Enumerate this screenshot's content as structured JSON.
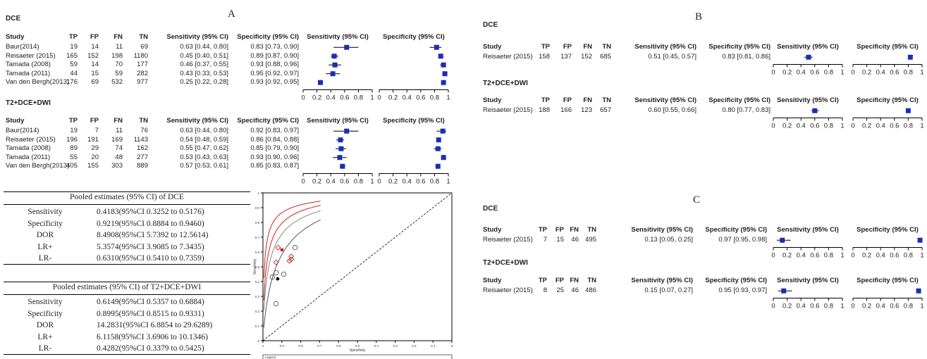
{
  "panel_labels": {
    "a": "A",
    "b": "B",
    "c": "C"
  },
  "column_headers": {
    "study": "Study",
    "tp": "TP",
    "fp": "FP",
    "fn": "FN",
    "tn": "TN",
    "sens": "Sensitivity (95% CI)",
    "spec": "Specificity (95% CI)"
  },
  "axis_ticks": [
    "0",
    "0.2",
    "0.4",
    "0.6",
    "0.8",
    "1"
  ],
  "panel_a": {
    "dce": {
      "label": "DCE",
      "rows": [
        {
          "study": "Baur(2014)",
          "tp": "19",
          "fp": "14",
          "fn": "11",
          "tn": "69",
          "sens": "0.63 [0.44, 0.80]",
          "spec": "0.83 [0.73, 0.90]",
          "sv": 0.63,
          "sl": 0.44,
          "sh": 0.8,
          "pv": 0.83,
          "pl": 0.73,
          "ph": 0.9
        },
        {
          "study": "Reisaeter (2015)",
          "tp": "165",
          "fp": "152",
          "fn": "198",
          "tn": "1180",
          "sens": "0.45 [0.40, 0.51]",
          "spec": "0.89 [0.87, 0.90]",
          "sv": 0.45,
          "sl": 0.4,
          "sh": 0.51,
          "pv": 0.89,
          "pl": 0.87,
          "ph": 0.9
        },
        {
          "study": "Tamada (2008)",
          "tp": "59",
          "fp": "14",
          "fn": "70",
          "tn": "177",
          "sens": "0.46 [0.37, 0.55]",
          "spec": "0.93 [0.88, 0.96]",
          "sv": 0.46,
          "sl": 0.37,
          "sh": 0.55,
          "pv": 0.93,
          "pl": 0.88,
          "ph": 0.96
        },
        {
          "study": "Tamada (2011)",
          "tp": "44",
          "fp": "15",
          "fn": "59",
          "tn": "282",
          "sens": "0.43 [0.33, 0.53]",
          "spec": "0.95 [0.92, 0.97]",
          "sv": 0.43,
          "sl": 0.33,
          "sh": 0.53,
          "pv": 0.95,
          "pl": 0.92,
          "ph": 0.97
        },
        {
          "study": "Van den Bergh(2013)",
          "tp": "176",
          "fp": "69",
          "fn": "532",
          "tn": "977",
          "sens": "0.25 [0.22, 0.28]",
          "spec": "0.93 [0.92, 0.95]",
          "sv": 0.25,
          "sl": 0.22,
          "sh": 0.28,
          "pv": 0.93,
          "pl": 0.92,
          "ph": 0.95
        }
      ]
    },
    "t2": {
      "label": "T2+DCE+DWI",
      "rows": [
        {
          "study": "Baur(2014)",
          "tp": "19",
          "fp": "7",
          "fn": "11",
          "tn": "76",
          "sens": "0.63 [0.44, 0.80]",
          "spec": "0.92 [0.83, 0.97]",
          "sv": 0.63,
          "sl": 0.44,
          "sh": 0.8,
          "pv": 0.92,
          "pl": 0.83,
          "ph": 0.97
        },
        {
          "study": "Reisaeter (2015)",
          "tp": "196",
          "fp": "191",
          "fn": "169",
          "tn": "1143",
          "sens": "0.54 [0.48, 0.59]",
          "spec": "0.86 [0.84, 0.88]",
          "sv": 0.54,
          "sl": 0.48,
          "sh": 0.59,
          "pv": 0.86,
          "pl": 0.84,
          "ph": 0.88
        },
        {
          "study": "Tamada (2008)",
          "tp": "89",
          "fp": "29",
          "fn": "74",
          "tn": "162",
          "sens": "0.55 [0.47, 0.62]",
          "spec": "0.85 [0.79, 0.90]",
          "sv": 0.55,
          "sl": 0.47,
          "sh": 0.62,
          "pv": 0.85,
          "pl": 0.79,
          "ph": 0.9
        },
        {
          "study": "Tamada (2011)",
          "tp": "55",
          "fp": "20",
          "fn": "48",
          "tn": "277",
          "sens": "0.53 [0.43, 0.63]",
          "spec": "0.93 [0.90, 0.96]",
          "sv": 0.53,
          "sl": 0.43,
          "sh": 0.63,
          "pv": 0.93,
          "pl": 0.9,
          "ph": 0.96
        },
        {
          "study": "Van den Bergh(2013)",
          "tp": "405",
          "fp": "155",
          "fn": "303",
          "tn": "889",
          "sens": "0.57 [0.53, 0.61]",
          "spec": "0.85 [0.83, 0.87]",
          "sv": 0.57,
          "sl": 0.53,
          "sh": 0.61,
          "pv": 0.85,
          "pl": 0.83,
          "ph": 0.87
        }
      ]
    }
  },
  "panel_b": {
    "dce": {
      "label": "DCE",
      "rows": [
        {
          "study": "Reisaeter (2015)",
          "tp": "158",
          "fp": "137",
          "fn": "152",
          "tn": "685",
          "sens": "0.51 [0.45, 0.57]",
          "spec": "0.83 [0.81, 0.86]",
          "sv": 0.51,
          "sl": 0.45,
          "sh": 0.57,
          "pv": 0.83,
          "pl": 0.81,
          "ph": 0.86
        }
      ]
    },
    "t2": {
      "label": "T2+DCE+DWI",
      "rows": [
        {
          "study": "Reisaeter (2015)",
          "tp": "188",
          "fp": "166",
          "fn": "123",
          "tn": "657",
          "sens": "0.60 [0.55, 0.66]",
          "spec": "0.80 [0.77, 0.83]",
          "sv": 0.6,
          "sl": 0.55,
          "sh": 0.66,
          "pv": 0.8,
          "pl": 0.77,
          "ph": 0.83
        }
      ]
    }
  },
  "panel_c": {
    "dce": {
      "label": "DCE",
      "rows": [
        {
          "study": "Reisaeter (2015)",
          "tp": "7",
          "fp": "15",
          "fn": "46",
          "tn": "495",
          "sens": "0.13 [0.05, 0.25]",
          "spec": "0.97 [0.95, 0.98]",
          "sv": 0.13,
          "sl": 0.05,
          "sh": 0.25,
          "pv": 0.97,
          "pl": 0.95,
          "ph": 0.98
        }
      ]
    },
    "t2": {
      "label": "T2+DCE+DWI",
      "rows": [
        {
          "study": "Reisaeter (2015)",
          "tp": "8",
          "fp": "25",
          "fn": "46",
          "tn": "486",
          "sens": "0.15 [0.07, 0.27]",
          "spec": "0.95 [0.93, 0.97]",
          "sv": 0.15,
          "sl": 0.07,
          "sh": 0.27,
          "pv": 0.95,
          "pl": 0.93,
          "ph": 0.97
        }
      ]
    }
  },
  "pooled_dce": {
    "title": "Pooled estimates (95% CI) of DCE",
    "rows": [
      {
        "label": "Sensitivity",
        "value": "0.4183(95%CI 0.3252 to 0.5176)"
      },
      {
        "label": "Specificity",
        "value": "0.9219(95%CI 0.8884 to 0.9460)"
      },
      {
        "label": "DOR",
        "value": "8.4908(95%CI 5.7392 to 12.5614)"
      },
      {
        "label": "LR+",
        "value": "5.3574(95%CI 3.9085 to 7.3435)"
      },
      {
        "label": "LR-",
        "value": "0.6310(95%CI 0.5410 to 0.7359)"
      }
    ]
  },
  "pooled_t2": {
    "title": "Pooled estimates (95% CI) of T2+DCE+DWI",
    "rows": [
      {
        "label": "Sensitivity",
        "value": "0.6149(95%CI 0.5357 to 0.6884)"
      },
      {
        "label": "Specificity",
        "value": "0.8995(95%CI 0.8515 to 0.9331)"
      },
      {
        "label": "DOR",
        "value": "14.2831(95%CI 6.8854 to 29.6289)"
      },
      {
        "label": "LR+",
        "value": "6.1158(95%CI 3.6906 to 10.1346)"
      },
      {
        "label": "LR-",
        "value": "0.4282(95%CI 0.3379 to 0.5425)"
      }
    ]
  },
  "sroc": {
    "ylabel": "Sensitivity",
    "xlabel": "Specificity",
    "yticks": [
      "0",
      "0.1",
      "0.2",
      "0.3",
      "0.4",
      "0.5",
      "0.6",
      "0.7",
      "0.8",
      "0.9",
      "1"
    ],
    "xticks": [
      "1",
      "0.9",
      "0.8",
      "0.7",
      "0.6",
      "0.5",
      "0.4",
      "0.3",
      "0.2",
      "0.1",
      "0"
    ],
    "legend_title": "Legend",
    "legend_dce": "DCE",
    "legend_t2": "T2+DCE+DWI",
    "colors": {
      "dce": "#555555",
      "t2": "#cc2222"
    }
  },
  "colors": {
    "marker": "#1a2fb5",
    "line": "#000000"
  },
  "chart_data": [
    {
      "type": "forest",
      "title": "A",
      "group": "DCE",
      "categories": [
        "Baur(2014)",
        "Reisaeter (2015)",
        "Tamada (2008)",
        "Tamada (2011)",
        "Van den Bergh(2013)"
      ],
      "series": [
        {
          "name": "Sensitivity (95% CI)",
          "values": [
            0.63,
            0.45,
            0.46,
            0.43,
            0.25
          ]
        },
        {
          "name": "Specificity (95% CI)",
          "values": [
            0.83,
            0.89,
            0.93,
            0.95,
            0.93
          ]
        }
      ],
      "xlim": [
        0,
        1
      ]
    },
    {
      "type": "forest",
      "title": "A",
      "group": "T2+DCE+DWI",
      "categories": [
        "Baur(2014)",
        "Reisaeter (2015)",
        "Tamada (2008)",
        "Tamada (2011)",
        "Van den Bergh(2013)"
      ],
      "series": [
        {
          "name": "Sensitivity (95% CI)",
          "values": [
            0.63,
            0.54,
            0.55,
            0.53,
            0.57
          ]
        },
        {
          "name": "Specificity (95% CI)",
          "values": [
            0.92,
            0.86,
            0.85,
            0.93,
            0.85
          ]
        }
      ],
      "xlim": [
        0,
        1
      ]
    },
    {
      "type": "scatter",
      "xlabel": "Specificity",
      "ylabel": "Sensitivity",
      "xlim": [
        1,
        0
      ],
      "ylim": [
        0,
        1
      ],
      "series": [
        {
          "name": "DCE",
          "x": [
            0.83,
            0.89,
            0.93,
            0.95,
            0.93
          ],
          "y": [
            0.63,
            0.45,
            0.46,
            0.43,
            0.25
          ]
        },
        {
          "name": "T2+DCE+DWI",
          "x": [
            0.92,
            0.86,
            0.85,
            0.93,
            0.85
          ],
          "y": [
            0.63,
            0.54,
            0.55,
            0.53,
            0.57
          ]
        }
      ]
    },
    {
      "type": "forest",
      "title": "B",
      "group": "DCE",
      "categories": [
        "Reisaeter (2015)"
      ],
      "series": [
        {
          "name": "Sensitivity (95% CI)",
          "values": [
            0.51
          ]
        },
        {
          "name": "Specificity (95% CI)",
          "values": [
            0.83
          ]
        }
      ],
      "xlim": [
        0,
        1
      ]
    },
    {
      "type": "forest",
      "title": "B",
      "group": "T2+DCE+DWI",
      "categories": [
        "Reisaeter (2015)"
      ],
      "series": [
        {
          "name": "Sensitivity (95% CI)",
          "values": [
            0.6
          ]
        },
        {
          "name": "Specificity (95% CI)",
          "values": [
            0.8
          ]
        }
      ],
      "xlim": [
        0,
        1
      ]
    },
    {
      "type": "forest",
      "title": "C",
      "group": "DCE",
      "categories": [
        "Reisaeter (2015)"
      ],
      "series": [
        {
          "name": "Sensitivity (95% CI)",
          "values": [
            0.13
          ]
        },
        {
          "name": "Specificity (95% CI)",
          "values": [
            0.97
          ]
        }
      ],
      "xlim": [
        0,
        1
      ]
    },
    {
      "type": "forest",
      "title": "C",
      "group": "T2+DCE+DWI",
      "categories": [
        "Reisaeter (2015)"
      ],
      "series": [
        {
          "name": "Sensitivity (95% CI)",
          "values": [
            0.15
          ]
        },
        {
          "name": "Specificity (95% CI)",
          "values": [
            0.95
          ]
        }
      ],
      "xlim": [
        0,
        1
      ]
    }
  ]
}
